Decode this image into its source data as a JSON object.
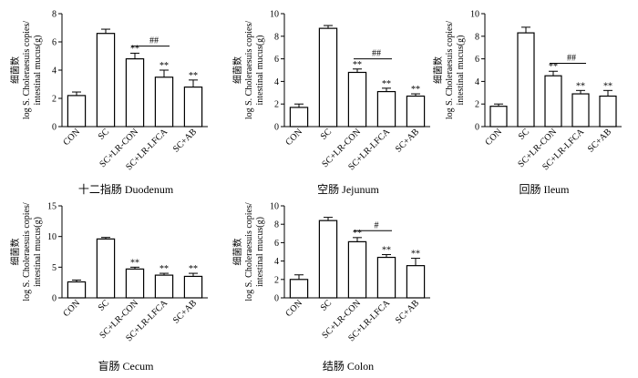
{
  "chart_data": [
    {
      "type": "bar",
      "title": "十二指肠 Duodenum",
      "ylabel_cn": "细菌数",
      "ylabel_line1": "log S. Choleraesuis copies/",
      "ylabel_line2": "intestinal mucus(g)",
      "categories": [
        "CON",
        "SC",
        "SC+LR-CON",
        "SC+LR-LFCA",
        "SC+AB"
      ],
      "values": [
        2.2,
        6.6,
        4.8,
        3.5,
        2.8
      ],
      "errors": [
        0.25,
        0.3,
        0.4,
        0.5,
        0.5
      ],
      "ylim": [
        0,
        8
      ],
      "yticks": [
        "0",
        "2",
        "4",
        "6",
        "8"
      ],
      "tick_values": [
        0,
        2,
        4,
        6,
        8
      ],
      "bar_colors": [
        "#ffffff",
        "#ffffff",
        "#ffffff",
        "#ffffff",
        "#ffffff"
      ],
      "sig_labels": [
        "",
        "",
        "**",
        "**",
        "**"
      ],
      "bracket": {
        "from": 2,
        "to": 3,
        "label": "##",
        "y": 5.7
      }
    },
    {
      "type": "bar",
      "title": "空肠 Jejunum",
      "ylabel_cn": "细菌数",
      "ylabel_line1": "log S. Choleraesuis copies/",
      "ylabel_line2": "intestinal mucus(g)",
      "categories": [
        "CON",
        "SC",
        "SC+LR-CON",
        "SC+LR-LFCA",
        "SC+AB"
      ],
      "values": [
        1.7,
        8.7,
        4.8,
        3.1,
        2.7
      ],
      "errors": [
        0.3,
        0.25,
        0.3,
        0.3,
        0.2
      ],
      "ylim": [
        0,
        10
      ],
      "yticks": [
        "0",
        "2",
        "4",
        "6",
        "8",
        "10"
      ],
      "tick_values": [
        0,
        2,
        4,
        6,
        8,
        10
      ],
      "bar_colors": [
        "#ffffff",
        "#ffffff",
        "#ffffff",
        "#ffffff",
        "#ffffff"
      ],
      "sig_labels": [
        "",
        "",
        "**",
        "**",
        "**"
      ],
      "bracket": {
        "from": 2,
        "to": 3,
        "label": "##",
        "y": 6.0
      }
    },
    {
      "type": "bar",
      "title": "回肠 Ileum",
      "ylabel_cn": "细菌数",
      "ylabel_line1": "log S. Choleraesuis copies/",
      "ylabel_line2": "intestinal mucus(g)",
      "categories": [
        "CON",
        "SC",
        "SC+LR-CON",
        "SC+LR-LFCA",
        "SC+AB"
      ],
      "values": [
        1.8,
        8.3,
        4.5,
        2.9,
        2.7
      ],
      "errors": [
        0.2,
        0.5,
        0.4,
        0.3,
        0.5
      ],
      "ylim": [
        0,
        10
      ],
      "yticks": [
        "0",
        "2",
        "4",
        "6",
        "8",
        "10"
      ],
      "tick_values": [
        0,
        2,
        4,
        6,
        8,
        10
      ],
      "bar_colors": [
        "#ffffff",
        "#ffffff",
        "#ffffff",
        "#ffffff",
        "#ffffff"
      ],
      "sig_labels": [
        "",
        "",
        "**",
        "**",
        "**"
      ],
      "bracket": {
        "from": 2,
        "to": 3,
        "label": "##",
        "y": 5.6
      }
    },
    {
      "type": "bar",
      "title": "盲肠 Cecum",
      "ylabel_cn": "细菌数",
      "ylabel_line1": "log S. Choleraesuis copies/",
      "ylabel_line2": "intestinal mucus(g)",
      "categories": [
        "CON",
        "SC",
        "SC+LR-CON",
        "SC+LR-LFCA",
        "SC+AB"
      ],
      "values": [
        2.6,
        9.6,
        4.7,
        3.7,
        3.5
      ],
      "errors": [
        0.3,
        0.25,
        0.3,
        0.3,
        0.5
      ],
      "ylim": [
        0,
        15
      ],
      "yticks": [
        "0",
        "5",
        "10",
        "15"
      ],
      "tick_values": [
        0,
        5,
        10,
        15
      ],
      "bar_colors": [
        "#ffffff",
        "#ffffff",
        "#ffffff",
        "#ffffff",
        "#ffffff"
      ],
      "sig_labels": [
        "",
        "",
        "**",
        "**",
        "**"
      ],
      "bracket": null
    },
    {
      "type": "bar",
      "title": "结肠 Colon",
      "ylabel_cn": "细菌数",
      "ylabel_line1": "log S. Choleraesuis copies/",
      "ylabel_line2": "intestinal mucus(g)",
      "categories": [
        "CON",
        "SC",
        "SC+LR-CON",
        "SC+LR-LFCA",
        "SC+AB"
      ],
      "values": [
        2.0,
        8.4,
        6.1,
        4.4,
        3.5
      ],
      "errors": [
        0.5,
        0.35,
        0.45,
        0.3,
        0.8
      ],
      "ylim": [
        0,
        10
      ],
      "yticks": [
        "0",
        "2",
        "4",
        "6",
        "8",
        "10"
      ],
      "tick_values": [
        0,
        2,
        4,
        6,
        8,
        10
      ],
      "bar_colors": [
        "#ffffff",
        "#ffffff",
        "#ffffff",
        "#ffffff",
        "#ffffff"
      ],
      "sig_labels": [
        "",
        "",
        "**",
        "**",
        "**"
      ],
      "bracket": {
        "from": 2,
        "to": 3,
        "label": "#",
        "y": 7.3
      }
    }
  ]
}
